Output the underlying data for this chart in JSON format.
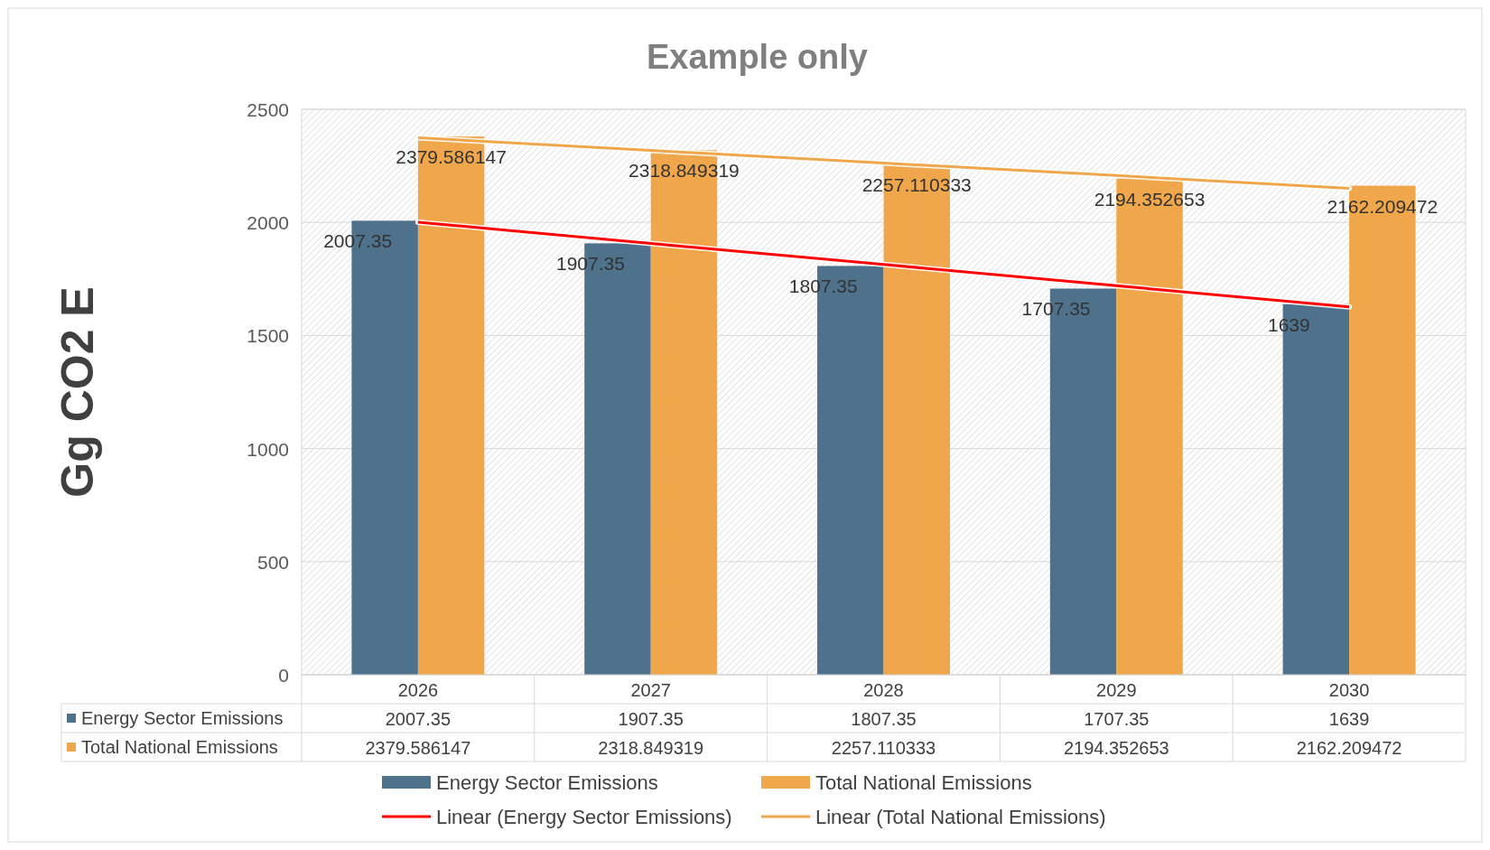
{
  "chart_data": {
    "type": "bar",
    "title": "Example only",
    "ylabel": "Gg CO2 E",
    "categories": [
      "2026",
      "2027",
      "2028",
      "2029",
      "2030"
    ],
    "series": [
      {
        "name": "Energy Sector Emissions",
        "color": "#4e718c",
        "values": [
          2007.35,
          1907.35,
          1807.35,
          1707.35,
          1639
        ],
        "value_labels": [
          "2007.35",
          "1907.35",
          "1807.35",
          "1707.35",
          "1639"
        ]
      },
      {
        "name": "Total National Emissions",
        "color": "#f0a64a",
        "values": [
          2379.586147,
          2318.849319,
          2257.110333,
          2194.352653,
          2162.209472
        ],
        "value_labels": [
          "2379.586147",
          "2318.849319",
          "2257.110333",
          "2194.352653",
          "2162.209472"
        ]
      },
      {
        "name": "Linear (Energy Sector Emissions)",
        "type": "line",
        "color": "#ff0000",
        "values": [
          2001,
          1907,
          1814,
          1720,
          1626
        ]
      },
      {
        "name": "Linear (Total National Emissions)",
        "type": "line",
        "color": "#f0a64a",
        "values": [
          2374,
          2318,
          2262,
          2207,
          2151
        ]
      }
    ],
    "ylim": [
      0,
      2500
    ],
    "yticks": [
      0,
      500,
      1000,
      1500,
      2000,
      2500
    ],
    "grid": "y",
    "legend": "bottom",
    "marker": "none",
    "line_style": "solid"
  }
}
